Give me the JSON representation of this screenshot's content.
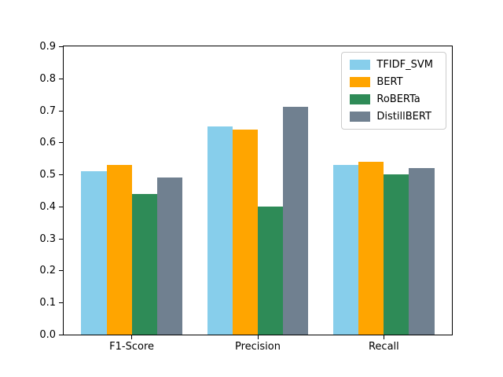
{
  "chart_data": {
    "type": "bar",
    "title": "",
    "xlabel": "",
    "ylabel": "",
    "categories": [
      "F1-Score",
      "Precision",
      "Recall"
    ],
    "series": [
      {
        "name": "TFIDF_SVM",
        "color": "#87CEEB",
        "values": [
          0.51,
          0.65,
          0.53
        ]
      },
      {
        "name": "BERT",
        "color": "#FFA500",
        "values": [
          0.53,
          0.64,
          0.54
        ]
      },
      {
        "name": "RoBERTa",
        "color": "#2E8B57",
        "values": [
          0.44,
          0.4,
          0.5
        ]
      },
      {
        "name": "DistillBERT",
        "color": "#708090",
        "values": [
          0.49,
          0.71,
          0.52
        ]
      }
    ],
    "ylim": [
      0.0,
      0.9
    ],
    "yticks": [
      0.0,
      0.1,
      0.2,
      0.3,
      0.4,
      0.5,
      0.6,
      0.7,
      0.8,
      0.9
    ],
    "xlim": [
      -0.54,
      2.54
    ],
    "bar_width": 0.2,
    "group_width": 0.8,
    "grid": false,
    "legend_position": "upper right"
  }
}
